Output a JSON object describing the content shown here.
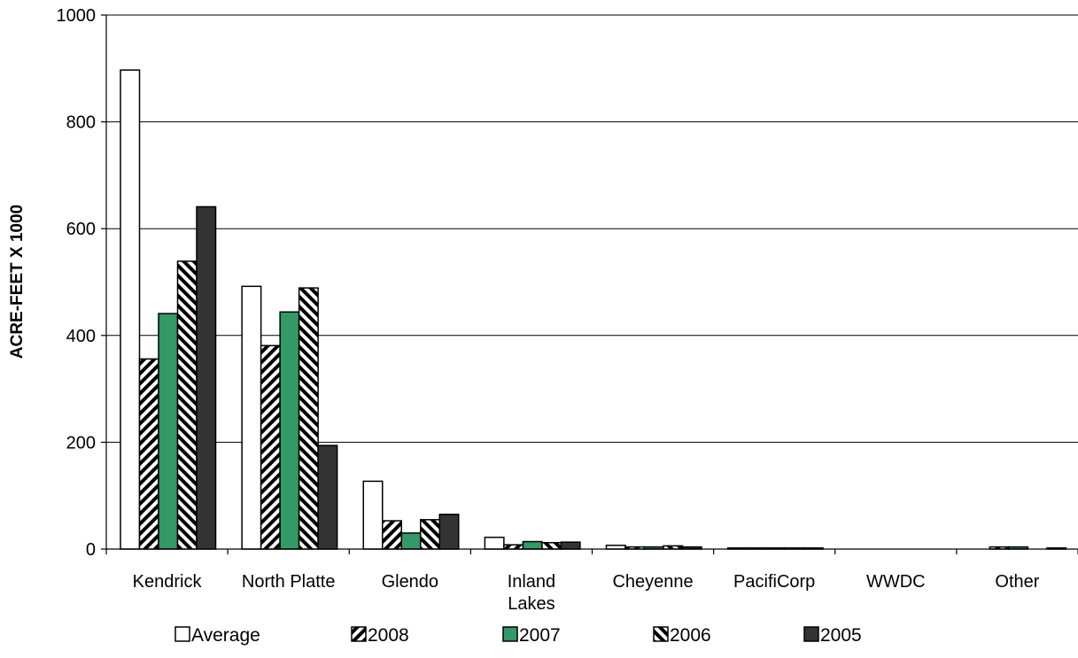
{
  "chart_data": {
    "type": "bar",
    "title": "",
    "xlabel": "",
    "ylabel": "ACRE-FEET X 1000",
    "ylim": [
      0,
      1000
    ],
    "yticks": [
      0,
      200,
      400,
      600,
      800,
      1000
    ],
    "grid": "horizontal",
    "legend_position": "bottom",
    "categories": [
      [
        "Kendrick"
      ],
      [
        "North Platte"
      ],
      [
        "Glendo"
      ],
      [
        "Inland",
        "Lakes"
      ],
      [
        "Cheyenne"
      ],
      [
        "PacifiCorp"
      ],
      [
        "WWDC"
      ],
      [
        "Other"
      ]
    ],
    "series": [
      {
        "name": "Average",
        "fill": "#ffffff",
        "pattern": "none",
        "values": [
          897,
          492,
          127,
          22,
          7,
          2,
          0,
          0
        ]
      },
      {
        "name": "2008",
        "fill": "#ffffff",
        "pattern": "diagonal-right",
        "values": [
          356,
          381,
          53,
          8,
          4,
          2,
          0,
          4
        ]
      },
      {
        "name": "2007",
        "fill": "#339966",
        "pattern": "none",
        "values": [
          441,
          444,
          30,
          14,
          4,
          2,
          0,
          4
        ]
      },
      {
        "name": "2006",
        "fill": "#ffffff",
        "pattern": "diagonal-left",
        "values": [
          539,
          489,
          55,
          12,
          6,
          2,
          0,
          0
        ]
      },
      {
        "name": "2005",
        "fill": "#333333",
        "pattern": "none",
        "values": [
          641,
          194,
          65,
          13,
          4,
          2,
          0,
          2
        ]
      }
    ]
  }
}
